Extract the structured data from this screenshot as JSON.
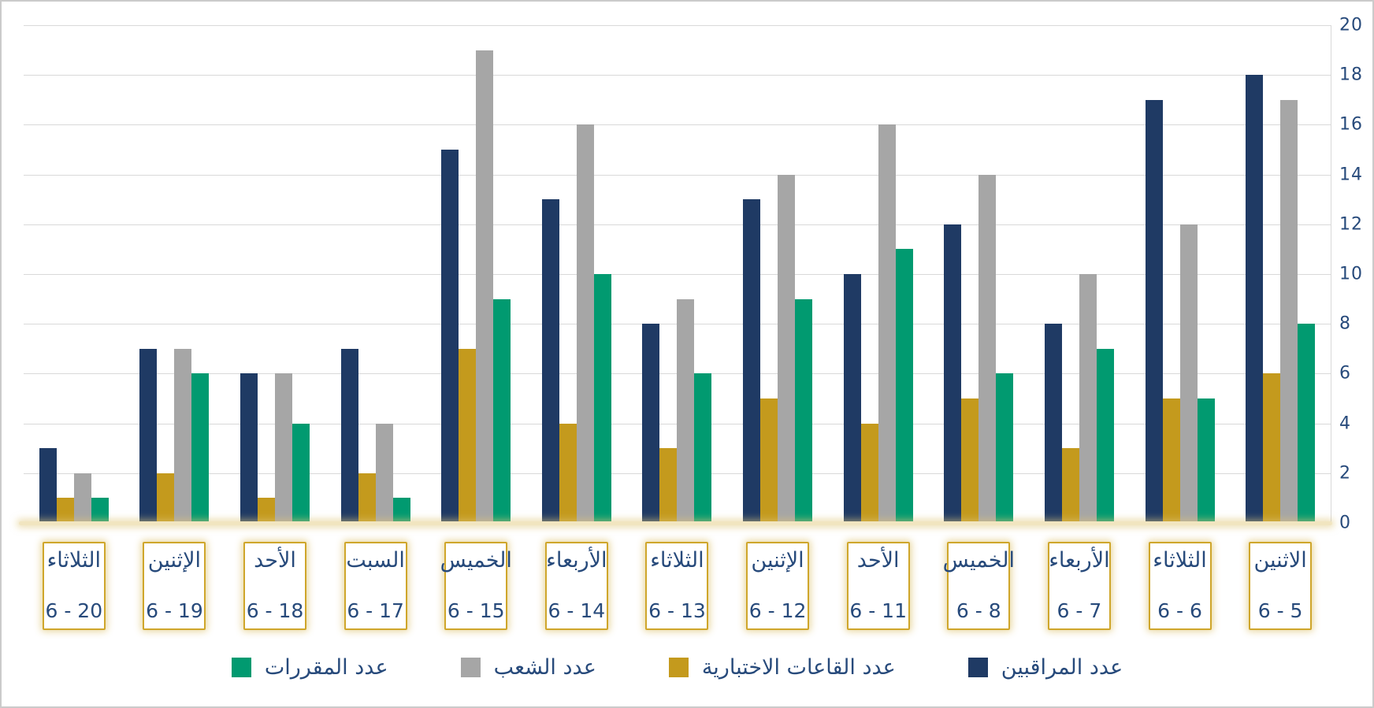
{
  "chart_data": {
    "type": "bar",
    "title": "",
    "direction": "rtl",
    "grid": "horizontal",
    "y_axis": {
      "side": "right",
      "min": 0,
      "max": 20,
      "step": 2,
      "tick_labels": [
        "0",
        "2",
        "4",
        "6",
        "8",
        "10",
        "12",
        "14",
        "16",
        "18",
        "20"
      ]
    },
    "categories": [
      {
        "day": "الثلاثاء",
        "date": "6 - 20"
      },
      {
        "day": "الإثنين",
        "date": "6 - 19"
      },
      {
        "day": "الأحد",
        "date": "6 - 18"
      },
      {
        "day": "السبت",
        "date": "6 - 17"
      },
      {
        "day": "الخميس",
        "date": "6 - 15"
      },
      {
        "day": "الأربعاء",
        "date": "6 - 14"
      },
      {
        "day": "الثلاثاء",
        "date": "6 - 13"
      },
      {
        "day": "الإثنين",
        "date": "6 - 12"
      },
      {
        "day": "الأحد",
        "date": "6 - 11"
      },
      {
        "day": "الخميس",
        "date": "6 - 8"
      },
      {
        "day": "الأربعاء",
        "date": "6 - 7"
      },
      {
        "day": "الثلاثاء",
        "date": "6 - 6"
      },
      {
        "day": "الاثنين",
        "date": "6 - 5"
      }
    ],
    "series": [
      {
        "name": "عدد المراقبين",
        "color": "#1f3a64",
        "values": [
          3,
          7,
          6,
          7,
          15,
          13,
          8,
          13,
          10,
          12,
          8,
          17,
          18
        ]
      },
      {
        "name": "عدد القاعات الاختبارية",
        "color": "#c49a1d",
        "values": [
          1,
          2,
          1,
          2,
          7,
          4,
          3,
          5,
          4,
          5,
          3,
          5,
          6
        ]
      },
      {
        "name": "عدد الشعب",
        "color": "#a6a6a6",
        "values": [
          2,
          7,
          6,
          4,
          19,
          16,
          9,
          14,
          16,
          14,
          10,
          12,
          17
        ]
      },
      {
        "name": "عدد المقررات",
        "color": "#019a70",
        "values": [
          1,
          6,
          4,
          1,
          9,
          10,
          6,
          9,
          11,
          6,
          7,
          5,
          8
        ]
      }
    ],
    "legend": {
      "position": "bottom",
      "order": "rtl"
    }
  },
  "colors": {
    "grid": "#d9d9d9",
    "axis_line": "#f1e5c0",
    "label_box_border": "#cfa62b",
    "text": "#274a7b",
    "background": "#ffffff",
    "frame_border": "#cbcbcb"
  }
}
